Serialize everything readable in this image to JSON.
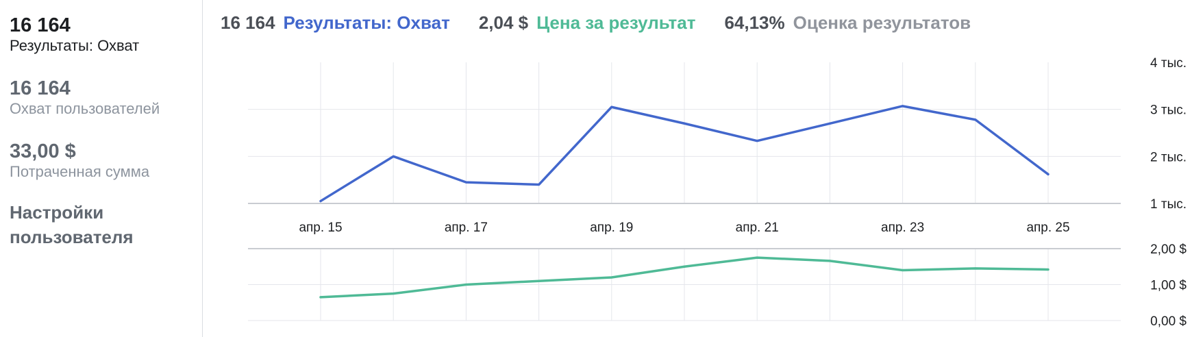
{
  "sidebar": {
    "metrics": [
      {
        "value": "16 164",
        "label": "Результаты: Охват"
      },
      {
        "value": "16 164",
        "label": "Охват пользователей"
      },
      {
        "value": "33,00 $",
        "label": "Потраченная сумма"
      }
    ],
    "settings_label": "Настройки пользователя"
  },
  "header": {
    "items": [
      {
        "value": "16 164",
        "name": "Результаты: Охват",
        "color": "#4267cc"
      },
      {
        "value": "2,04 $",
        "name": "Цена за результат",
        "color": "#4fba96"
      },
      {
        "value": "64,13%",
        "name": "Оценка результатов",
        "color": "#90949c"
      }
    ]
  },
  "chart_data": [
    {
      "type": "line",
      "x": [
        "апр. 15",
        "апр. 16",
        "апр. 17",
        "апр. 18",
        "апр. 19",
        "апр. 20",
        "апр. 21",
        "апр. 22",
        "апр. 23",
        "апр. 24",
        "апр. 25"
      ],
      "x_tick_labels": [
        "апр. 15",
        "апр. 17",
        "апр. 19",
        "апр. 21",
        "апр. 23",
        "апр. 25"
      ],
      "series": [
        {
          "name": "Результаты: Охват",
          "color": "#4267cc",
          "values": [
            1050,
            2000,
            1450,
            1400,
            3050,
            2700,
            2330,
            2700,
            3070,
            2780,
            1620
          ]
        }
      ],
      "y_tick_labels": [
        "4 тыс.",
        "3 тыс.",
        "2 тыс.",
        "1 тыс."
      ],
      "ylim": [
        1000,
        4000
      ],
      "grid": true
    },
    {
      "type": "line",
      "x": [
        "апр. 15",
        "апр. 16",
        "апр. 17",
        "апр. 18",
        "апр. 19",
        "апр. 20",
        "апр. 21",
        "апр. 22",
        "апр. 23",
        "апр. 24",
        "апр. 25"
      ],
      "series": [
        {
          "name": "Цена за результат",
          "color": "#4fba96",
          "values": [
            0.65,
            0.75,
            1.0,
            1.1,
            1.2,
            1.5,
            1.75,
            1.66,
            1.4,
            1.45,
            1.42
          ]
        }
      ],
      "y_tick_labels": [
        "2,00 $",
        "1,00 $",
        "0,00 $"
      ],
      "ylim": [
        0,
        2
      ],
      "grid": true
    }
  ]
}
